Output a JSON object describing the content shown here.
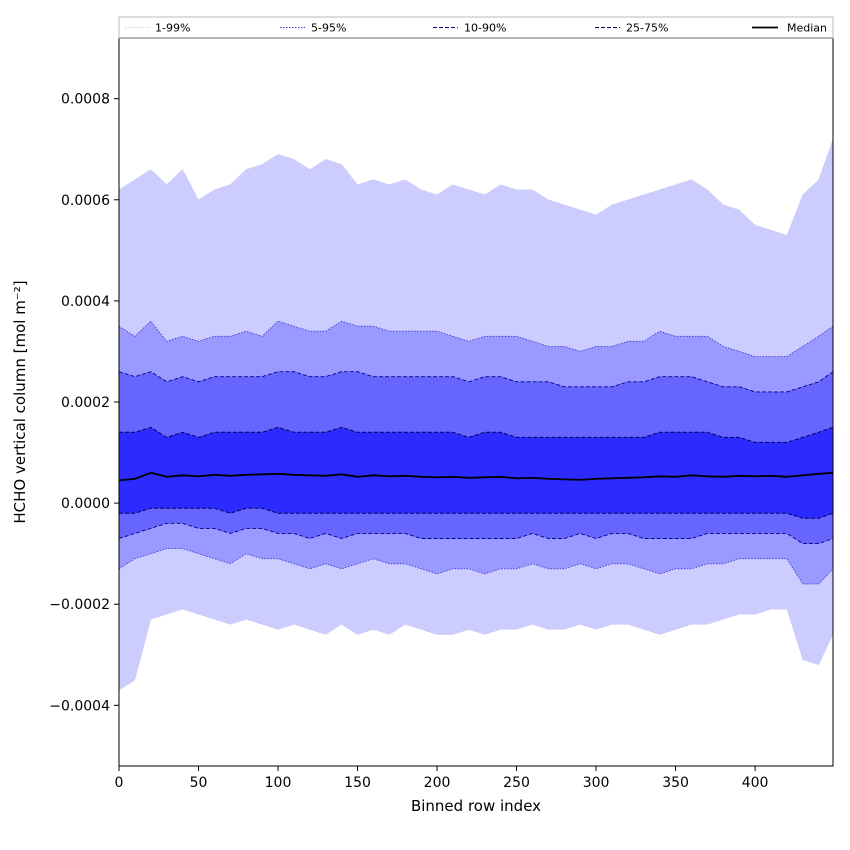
{
  "chart_data": {
    "type": "area",
    "xlabel": "Binned row index",
    "ylabel": "HCHO vertical column [mol m⁻²]",
    "xlim": [
      0,
      449
    ],
    "ylim": [
      -0.00052,
      0.00092
    ],
    "x_ticks": [
      0,
      50,
      100,
      150,
      200,
      250,
      300,
      350,
      400
    ],
    "x_tick_labels": [
      "0",
      "50",
      "100",
      "150",
      "200",
      "250",
      "300",
      "350",
      "400"
    ],
    "y_ticks": [
      -0.0004,
      -0.0002,
      0.0,
      0.0002,
      0.0004,
      0.0006,
      0.0008
    ],
    "y_tick_labels": [
      "−0.0004",
      "−0.0002",
      "0.0000",
      "0.0002",
      "0.0004",
      "0.0006",
      "0.0008"
    ],
    "legend_position": "top",
    "grid": false,
    "x": [
      0,
      10,
      20,
      30,
      40,
      50,
      60,
      70,
      80,
      90,
      100,
      110,
      120,
      130,
      140,
      150,
      160,
      170,
      180,
      190,
      200,
      210,
      220,
      230,
      240,
      250,
      260,
      270,
      280,
      290,
      300,
      310,
      320,
      330,
      340,
      350,
      360,
      370,
      380,
      390,
      400,
      410,
      420,
      430,
      440,
      449
    ],
    "series": [
      {
        "name": "1-99%",
        "band_fill": "#ccccff",
        "line_color": "#c8c8f0",
        "line_style": "dotted",
        "line_width": 0.6,
        "upper": [
          0.00062,
          0.00064,
          0.00066,
          0.00063,
          0.00066,
          0.0006,
          0.00062,
          0.00063,
          0.00066,
          0.00067,
          0.00069,
          0.00068,
          0.00066,
          0.00068,
          0.00067,
          0.00063,
          0.00064,
          0.00063,
          0.00064,
          0.00062,
          0.00061,
          0.00063,
          0.00062,
          0.00061,
          0.00063,
          0.00062,
          0.00062,
          0.0006,
          0.00059,
          0.00058,
          0.00057,
          0.00059,
          0.0006,
          0.00061,
          0.00062,
          0.00063,
          0.00064,
          0.00062,
          0.00059,
          0.00058,
          0.00055,
          0.00054,
          0.00053,
          0.00061,
          0.00064,
          0.00072
        ],
        "lower": [
          -0.00037,
          -0.00035,
          -0.00023,
          -0.00022,
          -0.00021,
          -0.00022,
          -0.00023,
          -0.00024,
          -0.00023,
          -0.00024,
          -0.00025,
          -0.00024,
          -0.00025,
          -0.00026,
          -0.00024,
          -0.00026,
          -0.00025,
          -0.00026,
          -0.00024,
          -0.00025,
          -0.00026,
          -0.00026,
          -0.00025,
          -0.00026,
          -0.00025,
          -0.00025,
          -0.00024,
          -0.00025,
          -0.00025,
          -0.00024,
          -0.00025,
          -0.00024,
          -0.00024,
          -0.00025,
          -0.00026,
          -0.00025,
          -0.00024,
          -0.00024,
          -0.00023,
          -0.00022,
          -0.00022,
          -0.00021,
          -0.00021,
          -0.00031,
          -0.00032,
          -0.00026
        ]
      },
      {
        "name": "5-95%",
        "band_fill": "#9999ff",
        "line_color": "#3333cc",
        "line_style": "dotted",
        "line_width": 0.8,
        "upper": [
          0.00035,
          0.00033,
          0.00036,
          0.00032,
          0.00033,
          0.00032,
          0.00033,
          0.00033,
          0.00034,
          0.00033,
          0.00036,
          0.00035,
          0.00034,
          0.00034,
          0.00036,
          0.00035,
          0.00035,
          0.00034,
          0.00034,
          0.00034,
          0.00034,
          0.00033,
          0.00032,
          0.00033,
          0.00033,
          0.00033,
          0.00032,
          0.00031,
          0.00031,
          0.0003,
          0.00031,
          0.00031,
          0.00032,
          0.00032,
          0.00034,
          0.00033,
          0.00033,
          0.00033,
          0.00031,
          0.0003,
          0.00029,
          0.00029,
          0.00029,
          0.00031,
          0.00033,
          0.00035
        ],
        "lower": [
          -0.00013,
          -0.00011,
          -0.0001,
          -9e-05,
          -9e-05,
          -0.0001,
          -0.00011,
          -0.00012,
          -0.0001,
          -0.00011,
          -0.00011,
          -0.00012,
          -0.00013,
          -0.00012,
          -0.00013,
          -0.00012,
          -0.00011,
          -0.00012,
          -0.00012,
          -0.00013,
          -0.00014,
          -0.00013,
          -0.00013,
          -0.00014,
          -0.00013,
          -0.00013,
          -0.00012,
          -0.00013,
          -0.00013,
          -0.00012,
          -0.00013,
          -0.00012,
          -0.00012,
          -0.00013,
          -0.00014,
          -0.00013,
          -0.00013,
          -0.00012,
          -0.00012,
          -0.00011,
          -0.00011,
          -0.00011,
          -0.00011,
          -0.00016,
          -0.00016,
          -0.00013
        ]
      },
      {
        "name": "10-90%",
        "band_fill": "#6666ff",
        "line_color": "#00008b",
        "line_style": "dashed",
        "line_width": 0.9,
        "upper": [
          0.00026,
          0.00025,
          0.00026,
          0.00024,
          0.00025,
          0.00024,
          0.00025,
          0.00025,
          0.00025,
          0.00025,
          0.00026,
          0.00026,
          0.00025,
          0.00025,
          0.00026,
          0.00026,
          0.00025,
          0.00025,
          0.00025,
          0.00025,
          0.00025,
          0.00025,
          0.00024,
          0.00025,
          0.00025,
          0.00024,
          0.00024,
          0.00024,
          0.00023,
          0.00023,
          0.00023,
          0.00023,
          0.00024,
          0.00024,
          0.00025,
          0.00025,
          0.00025,
          0.00024,
          0.00023,
          0.00023,
          0.00022,
          0.00022,
          0.00022,
          0.00023,
          0.00024,
          0.00026
        ],
        "lower": [
          -7e-05,
          -6e-05,
          -5e-05,
          -4e-05,
          -4e-05,
          -5e-05,
          -5e-05,
          -6e-05,
          -5e-05,
          -5e-05,
          -6e-05,
          -6e-05,
          -7e-05,
          -6e-05,
          -7e-05,
          -6e-05,
          -6e-05,
          -6e-05,
          -6e-05,
          -7e-05,
          -7e-05,
          -7e-05,
          -7e-05,
          -7e-05,
          -7e-05,
          -7e-05,
          -6e-05,
          -7e-05,
          -7e-05,
          -6e-05,
          -7e-05,
          -6e-05,
          -6e-05,
          -7e-05,
          -7e-05,
          -7e-05,
          -7e-05,
          -6e-05,
          -6e-05,
          -6e-05,
          -6e-05,
          -6e-05,
          -6e-05,
          -8e-05,
          -8e-05,
          -7e-05
        ]
      },
      {
        "name": "25-75%",
        "band_fill": "#2b2bff",
        "line_color": "#00005a",
        "line_style": "dashed",
        "line_width": 1.0,
        "upper": [
          0.00014,
          0.00014,
          0.00015,
          0.00013,
          0.00014,
          0.00013,
          0.00014,
          0.00014,
          0.00014,
          0.00014,
          0.00015,
          0.00014,
          0.00014,
          0.00014,
          0.00015,
          0.00014,
          0.00014,
          0.00014,
          0.00014,
          0.00014,
          0.00014,
          0.00014,
          0.00013,
          0.00014,
          0.00014,
          0.00013,
          0.00013,
          0.00013,
          0.00013,
          0.00013,
          0.00013,
          0.00013,
          0.00013,
          0.00013,
          0.00014,
          0.00014,
          0.00014,
          0.00014,
          0.00013,
          0.00013,
          0.00012,
          0.00012,
          0.00012,
          0.00013,
          0.00014,
          0.00015
        ],
        "lower": [
          -2e-05,
          -2e-05,
          -1e-05,
          -1e-05,
          -1e-05,
          -1e-05,
          -1e-05,
          -2e-05,
          -1e-05,
          -1e-05,
          -2e-05,
          -2e-05,
          -2e-05,
          -2e-05,
          -2e-05,
          -2e-05,
          -2e-05,
          -2e-05,
          -2e-05,
          -2e-05,
          -2e-05,
          -2e-05,
          -2e-05,
          -2e-05,
          -2e-05,
          -2e-05,
          -2e-05,
          -2e-05,
          -2e-05,
          -2e-05,
          -2e-05,
          -2e-05,
          -2e-05,
          -2e-05,
          -2e-05,
          -2e-05,
          -2e-05,
          -2e-05,
          -2e-05,
          -2e-05,
          -2e-05,
          -2e-05,
          -2e-05,
          -3e-05,
          -3e-05,
          -2e-05
        ]
      },
      {
        "name": "Median",
        "line_color": "#000000",
        "line_style": "solid",
        "line_width": 1.8,
        "values": [
          4.5e-05,
          4.8e-05,
          6e-05,
          5.2e-05,
          5.5e-05,
          5.3e-05,
          5.6e-05,
          5.4e-05,
          5.6e-05,
          5.7e-05,
          5.8e-05,
          5.6e-05,
          5.5e-05,
          5.4e-05,
          5.7e-05,
          5.2e-05,
          5.5e-05,
          5.3e-05,
          5.4e-05,
          5.2e-05,
          5.1e-05,
          5.2e-05,
          5e-05,
          5.1e-05,
          5.2e-05,
          4.9e-05,
          5e-05,
          4.8e-05,
          4.7e-05,
          4.6e-05,
          4.8e-05,
          4.9e-05,
          5e-05,
          5.1e-05,
          5.3e-05,
          5.2e-05,
          5.5e-05,
          5.3e-05,
          5.2e-05,
          5.4e-05,
          5.3e-05,
          5.4e-05,
          5.2e-05,
          5.5e-05,
          5.8e-05,
          6e-05
        ]
      }
    ]
  }
}
